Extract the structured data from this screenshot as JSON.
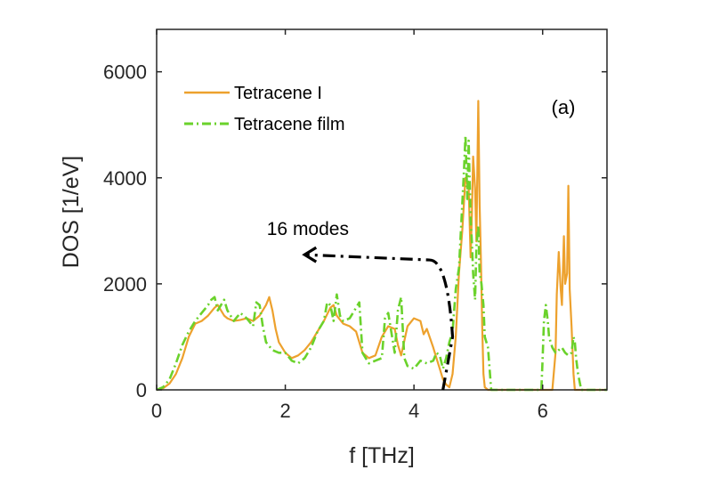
{
  "chart_data": {
    "type": "line",
    "xlabel": "f [THz]",
    "ylabel": "DOS [1/eV]",
    "xlim": [
      0,
      7
    ],
    "ylim": [
      0,
      6800
    ],
    "xticks": [
      0,
      2,
      4,
      6
    ],
    "yticks": [
      0,
      2000,
      4000,
      6000
    ],
    "grid": false,
    "legend_position": "top-left",
    "panel_label": "(a)",
    "annotation": {
      "text": "16 modes",
      "arrow_path": [
        [
          4.45,
          0
        ],
        [
          4.6,
          1000
        ],
        [
          4.52,
          2450
        ],
        [
          2.3,
          2550
        ]
      ]
    },
    "series": [
      {
        "name": "Tetracene I",
        "color": "#EDA12D",
        "style": "solid",
        "x": [
          0.0,
          0.1,
          0.2,
          0.3,
          0.4,
          0.5,
          0.6,
          0.7,
          0.8,
          0.9,
          0.95,
          1.0,
          1.05,
          1.1,
          1.2,
          1.3,
          1.4,
          1.5,
          1.6,
          1.7,
          1.75,
          1.8,
          1.85,
          1.9,
          2.0,
          2.1,
          2.2,
          2.3,
          2.4,
          2.5,
          2.6,
          2.7,
          2.75,
          2.8,
          2.9,
          3.0,
          3.1,
          3.2,
          3.3,
          3.4,
          3.5,
          3.6,
          3.7,
          3.75,
          3.8,
          3.9,
          4.0,
          4.1,
          4.15,
          4.2,
          4.3,
          4.35,
          4.4,
          4.45,
          4.5,
          4.55,
          4.6,
          4.65,
          4.7,
          4.75,
          4.8,
          4.85,
          4.88,
          4.9,
          4.92,
          4.95,
          4.97,
          5.0,
          5.02,
          5.04,
          5.06,
          5.08,
          5.1,
          5.15,
          5.2,
          5.25,
          5.3,
          5.4,
          5.6,
          5.8,
          6.0,
          6.05,
          6.1,
          6.15,
          6.2,
          6.22,
          6.25,
          6.28,
          6.3,
          6.33,
          6.35,
          6.38,
          6.4,
          6.42,
          6.45,
          6.48,
          6.5,
          6.55,
          6.6,
          6.8,
          7.0
        ],
        "y": [
          0,
          30,
          120,
          300,
          600,
          1000,
          1250,
          1300,
          1400,
          1550,
          1600,
          1500,
          1400,
          1350,
          1300,
          1320,
          1350,
          1300,
          1400,
          1600,
          1750,
          1500,
          1150,
          900,
          700,
          600,
          650,
          750,
          900,
          1100,
          1300,
          1550,
          1600,
          1400,
          1250,
          1200,
          1100,
          700,
          600,
          650,
          1000,
          1200,
          1150,
          850,
          650,
          1200,
          1350,
          1300,
          1050,
          1150,
          800,
          600,
          400,
          200,
          100,
          50,
          300,
          1000,
          2200,
          3000,
          4000,
          3800,
          2500,
          3300,
          4400,
          3800,
          2800,
          5450,
          3500,
          2500,
          1200,
          300,
          50,
          0,
          0,
          0,
          0,
          0,
          0,
          0,
          0,
          0,
          0,
          0,
          700,
          1800,
          2600,
          1900,
          1600,
          2900,
          2000,
          2200,
          3850,
          1900,
          1200,
          300,
          0,
          0,
          0,
          0,
          0
        ]
      },
      {
        "name": "Tetracene film",
        "color": "#6AD22B",
        "style": "dash-dot",
        "x": [
          0.0,
          0.1,
          0.2,
          0.3,
          0.4,
          0.5,
          0.6,
          0.7,
          0.8,
          0.85,
          0.9,
          0.95,
          1.0,
          1.05,
          1.1,
          1.2,
          1.3,
          1.4,
          1.5,
          1.55,
          1.6,
          1.65,
          1.7,
          1.8,
          1.9,
          2.0,
          2.1,
          2.2,
          2.3,
          2.4,
          2.5,
          2.6,
          2.65,
          2.7,
          2.75,
          2.8,
          2.85,
          2.9,
          3.0,
          3.1,
          3.15,
          3.2,
          3.3,
          3.4,
          3.5,
          3.55,
          3.6,
          3.7,
          3.75,
          3.8,
          3.85,
          3.9,
          4.0,
          4.1,
          4.2,
          4.3,
          4.35,
          4.4,
          4.45,
          4.5,
          4.55,
          4.6,
          4.65,
          4.7,
          4.75,
          4.78,
          4.8,
          4.83,
          4.85,
          4.88,
          4.9,
          4.92,
          4.95,
          4.97,
          5.0,
          5.02,
          5.05,
          5.08,
          5.1,
          5.15,
          5.2,
          5.4,
          5.6,
          5.8,
          5.98,
          6.0,
          6.02,
          6.05,
          6.08,
          6.1,
          6.15,
          6.2,
          6.25,
          6.3,
          6.35,
          6.4,
          6.45,
          6.48,
          6.5,
          6.52,
          6.55,
          6.6,
          6.8,
          7.0
        ],
        "y": [
          0,
          50,
          200,
          500,
          850,
          1100,
          1300,
          1450,
          1600,
          1700,
          1750,
          1500,
          1600,
          1700,
          1500,
          1300,
          1450,
          1350,
          1200,
          1650,
          1600,
          1200,
          900,
          750,
          700,
          700,
          550,
          500,
          600,
          800,
          1100,
          1300,
          1650,
          1600,
          1300,
          1800,
          1400,
          1300,
          1350,
          1550,
          1650,
          700,
          500,
          550,
          600,
          1350,
          1450,
          700,
          1500,
          1750,
          600,
          450,
          400,
          550,
          500,
          550,
          700,
          650,
          400,
          600,
          900,
          1100,
          1900,
          2300,
          3500,
          4200,
          4800,
          3600,
          4700,
          3200,
          2800,
          2200,
          1700,
          2700,
          3100,
          2200,
          2000,
          1600,
          1000,
          800,
          0,
          0,
          0,
          0,
          0,
          600,
          1300,
          1600,
          1300,
          1000,
          800,
          700,
          750,
          800,
          700,
          650,
          700,
          1000,
          900,
          600,
          300,
          0,
          0,
          0
        ]
      }
    ]
  }
}
